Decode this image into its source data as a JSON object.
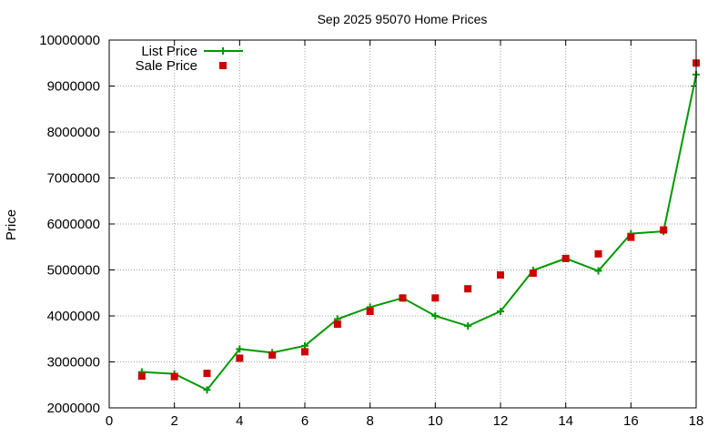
{
  "chart_data": {
    "type": "line",
    "title": "Sep 2025 95070 Home Prices",
    "xlabel": "",
    "ylabel": "Price",
    "xlim": [
      0,
      18
    ],
    "ylim": [
      2000000,
      10000000
    ],
    "xticks": [
      0,
      2,
      4,
      6,
      8,
      10,
      12,
      14,
      16,
      18
    ],
    "yticks": [
      2000000,
      3000000,
      4000000,
      5000000,
      6000000,
      7000000,
      8000000,
      9000000,
      10000000
    ],
    "grid": true,
    "legend_position": "top-left",
    "x": [
      1,
      2,
      3,
      4,
      5,
      6,
      7,
      8,
      9,
      10,
      11,
      12,
      13,
      14,
      15,
      16,
      17,
      18
    ],
    "series": [
      {
        "name": "List Price",
        "style": "linespoints",
        "marker": "plus",
        "color": "#009900",
        "values": [
          2780000,
          2740000,
          2390000,
          3280000,
          3200000,
          3350000,
          3930000,
          4190000,
          4390000,
          4000000,
          3780000,
          4100000,
          4990000,
          5250000,
          4980000,
          5790000,
          5840000,
          9250000
        ]
      },
      {
        "name": "Sale Price",
        "style": "points",
        "marker": "square",
        "color": "#cc0000",
        "values": [
          2690000,
          2680000,
          2750000,
          3080000,
          3150000,
          3220000,
          3820000,
          4100000,
          4390000,
          4390000,
          4590000,
          4890000,
          4930000,
          5250000,
          5350000,
          5710000,
          5870000,
          9500000
        ]
      }
    ]
  }
}
